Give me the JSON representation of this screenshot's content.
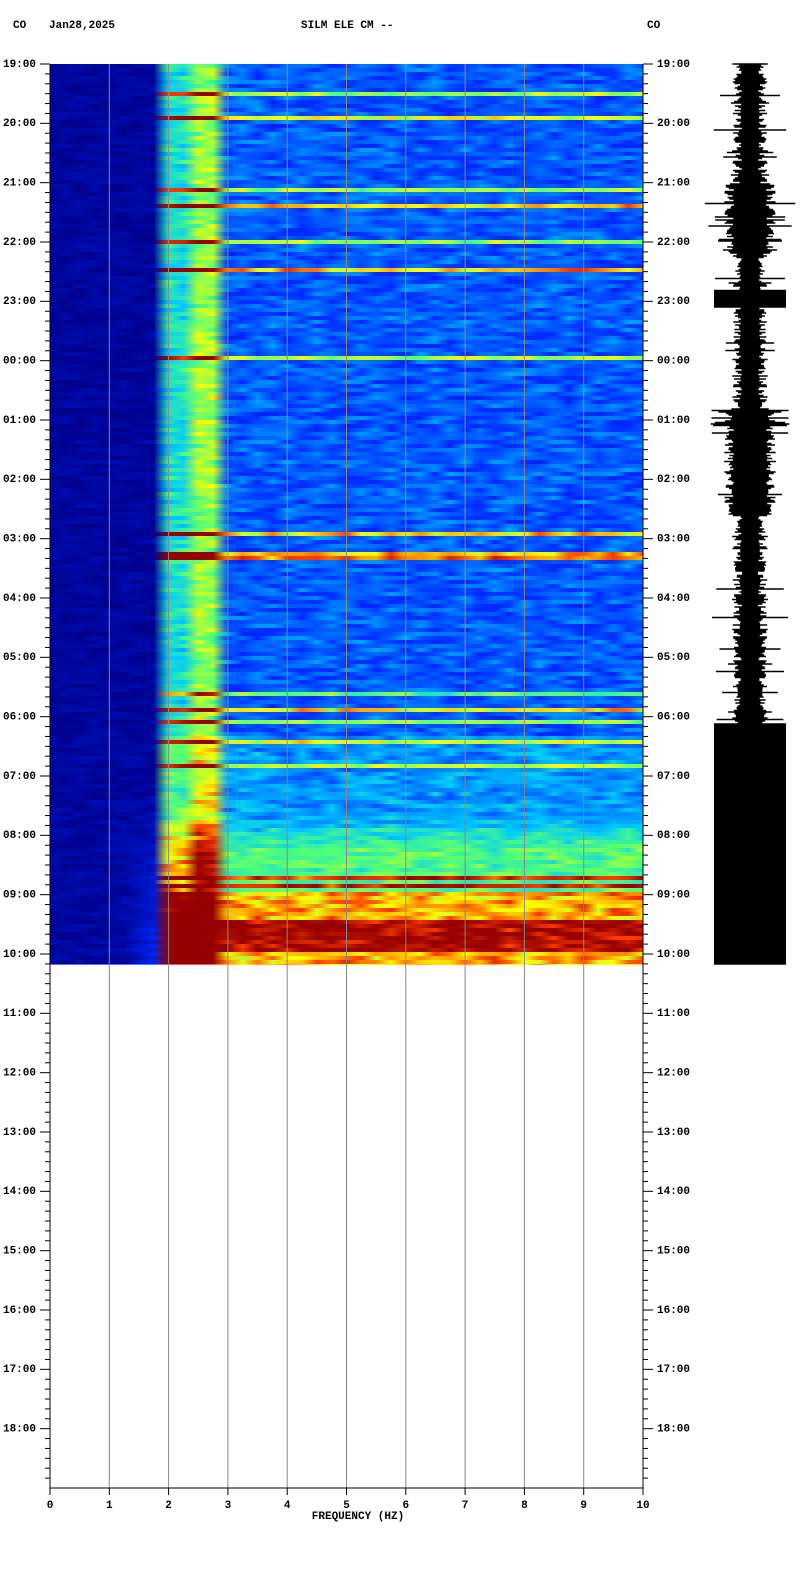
{
  "chart_data": {
    "type": "spectrogram",
    "header": {
      "left_station": "CO",
      "date": "Jan28,2025",
      "title": "SILM ELE CM --",
      "right_station": "CO"
    },
    "xlabel": "FREQUENCY (HZ)",
    "xlim": [
      0,
      10
    ],
    "xticks": [
      0,
      1,
      2,
      3,
      4,
      5,
      6,
      7,
      8,
      9,
      10
    ],
    "ylim": [
      0,
      24
    ],
    "yticks": [
      {
        "value": 0,
        "label": "19:00"
      },
      {
        "value": 1,
        "label": "20:00"
      },
      {
        "value": 2,
        "label": "21:00"
      },
      {
        "value": 3,
        "label": "22:00"
      },
      {
        "value": 4,
        "label": "23:00"
      },
      {
        "value": 5,
        "label": "00:00"
      },
      {
        "value": 6,
        "label": "01:00"
      },
      {
        "value": 7,
        "label": "02:00"
      },
      {
        "value": 8,
        "label": "03:00"
      },
      {
        "value": 9,
        "label": "04:00"
      },
      {
        "value": 10,
        "label": "05:00"
      },
      {
        "value": 11,
        "label": "06:00"
      },
      {
        "value": 12,
        "label": "07:00"
      },
      {
        "value": 13,
        "label": "08:00"
      },
      {
        "value": 14,
        "label": "09:00"
      },
      {
        "value": 15,
        "label": "10:00"
      },
      {
        "value": 16,
        "label": "11:00"
      },
      {
        "value": 17,
        "label": "12:00"
      },
      {
        "value": 18,
        "label": "13:00"
      },
      {
        "value": 19,
        "label": "14:00"
      },
      {
        "value": 20,
        "label": "15:00"
      },
      {
        "value": 21,
        "label": "16:00"
      },
      {
        "value": 22,
        "label": "17:00"
      },
      {
        "value": 23,
        "label": "18:00"
      }
    ],
    "grid": true
  }
}
